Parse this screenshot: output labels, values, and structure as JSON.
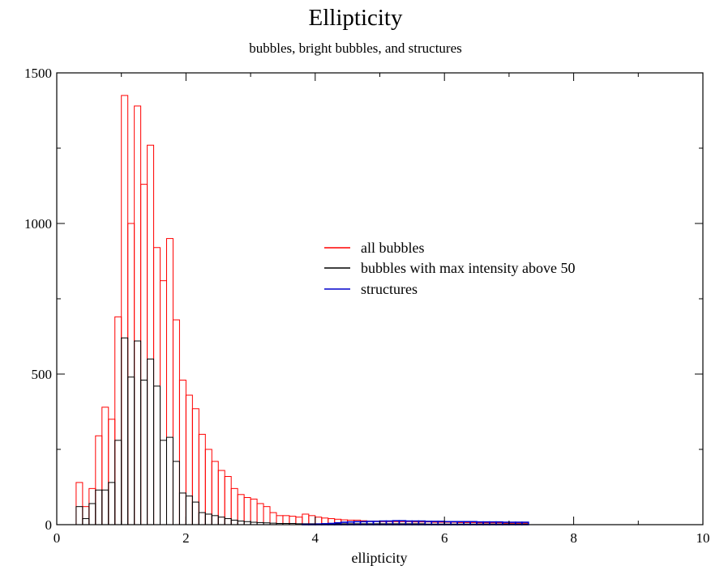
{
  "chart_data": {
    "type": "bar",
    "title": "Ellipticity",
    "subtitle": "bubbles, bright bubbles, and structures",
    "xlabel": "ellipticity",
    "ylabel": "",
    "xlim": [
      0,
      10
    ],
    "ylim": [
      0,
      1500
    ],
    "xticks": [
      0,
      2,
      4,
      6,
      8,
      10
    ],
    "yticks": [
      0,
      500,
      1000,
      1500
    ],
    "grid": false,
    "legend_position": "center-right",
    "bin_width": 0.1,
    "bin_start": 0.3,
    "series": [
      {
        "name": "all bubbles",
        "color": "#ff0000",
        "values": [
          140,
          60,
          120,
          295,
          390,
          350,
          690,
          1425,
          1000,
          1390,
          1130,
          1260,
          920,
          810,
          950,
          680,
          480,
          430,
          385,
          300,
          250,
          210,
          180,
          160,
          120,
          100,
          90,
          85,
          70,
          60,
          40,
          30,
          30,
          28,
          25,
          35,
          30,
          25,
          22,
          20,
          18,
          16,
          15,
          15,
          13,
          12,
          12,
          10,
          10,
          10,
          10,
          10,
          9,
          9,
          9,
          8,
          8,
          8,
          8,
          7,
          7,
          7,
          6,
          6,
          6,
          6,
          5,
          5,
          5,
          5
        ]
      },
      {
        "name": "bubbles with max intensity above 50",
        "color": "#000000",
        "values": [
          60,
          20,
          70,
          115,
          115,
          140,
          280,
          620,
          490,
          610,
          480,
          550,
          460,
          280,
          290,
          210,
          105,
          95,
          75,
          40,
          35,
          30,
          25,
          20,
          15,
          12,
          10,
          8,
          7,
          6,
          5,
          4,
          4,
          4,
          3,
          3,
          3,
          3,
          3,
          3,
          3,
          3,
          3,
          3,
          3,
          3,
          3,
          3,
          3,
          3,
          3,
          3,
          3,
          3,
          2,
          2,
          2,
          2,
          2,
          2,
          2,
          2,
          2,
          2,
          2,
          2,
          2,
          2,
          2,
          2
        ]
      },
      {
        "name": "structures",
        "color": "#0000cc",
        "values": [
          0,
          0,
          0,
          0,
          0,
          0,
          0,
          0,
          0,
          0,
          0,
          0,
          0,
          0,
          0,
          0,
          0,
          0,
          0,
          0,
          0,
          0,
          0,
          0,
          0,
          0,
          0,
          0,
          0,
          0,
          0,
          0,
          0,
          0,
          0,
          1,
          1,
          2,
          3,
          4,
          6,
          8,
          9,
          10,
          10,
          11,
          11,
          12,
          12,
          13,
          13,
          12,
          12,
          12,
          11,
          11,
          11,
          10,
          10,
          10,
          10,
          10,
          9,
          9,
          9,
          9,
          8,
          8,
          8,
          8
        ]
      }
    ]
  }
}
